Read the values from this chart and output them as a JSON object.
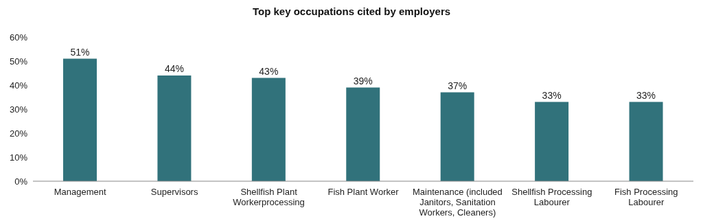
{
  "chart_data": {
    "type": "bar",
    "title": "Top key occupations cited by employers",
    "categories": [
      "Management",
      "Supervisors",
      "Shellfish Plant Workerprocessing",
      "Fish Plant Worker",
      "Maintenance (included Janitors, Sanitation Workers, Cleaners)",
      "Shellfish Processing Labourer",
      "Fish Processing Labourer"
    ],
    "values": [
      51,
      44,
      43,
      39,
      37,
      33,
      33
    ],
    "value_labels": [
      "51%",
      "44%",
      "43%",
      "39%",
      "37%",
      "33%",
      "33%"
    ],
    "color": "#31727b",
    "ylim": [
      0,
      60
    ],
    "yticks": [
      {
        "value": 0,
        "label": "0%"
      },
      {
        "value": 10,
        "label": "10%"
      },
      {
        "value": 20,
        "label": "20%"
      },
      {
        "value": 30,
        "label": "30%"
      },
      {
        "value": 40,
        "label": "40%"
      },
      {
        "value": 50,
        "label": "50%"
      },
      {
        "value": 60,
        "label": "60%"
      }
    ],
    "grid": false,
    "legend": false
  }
}
